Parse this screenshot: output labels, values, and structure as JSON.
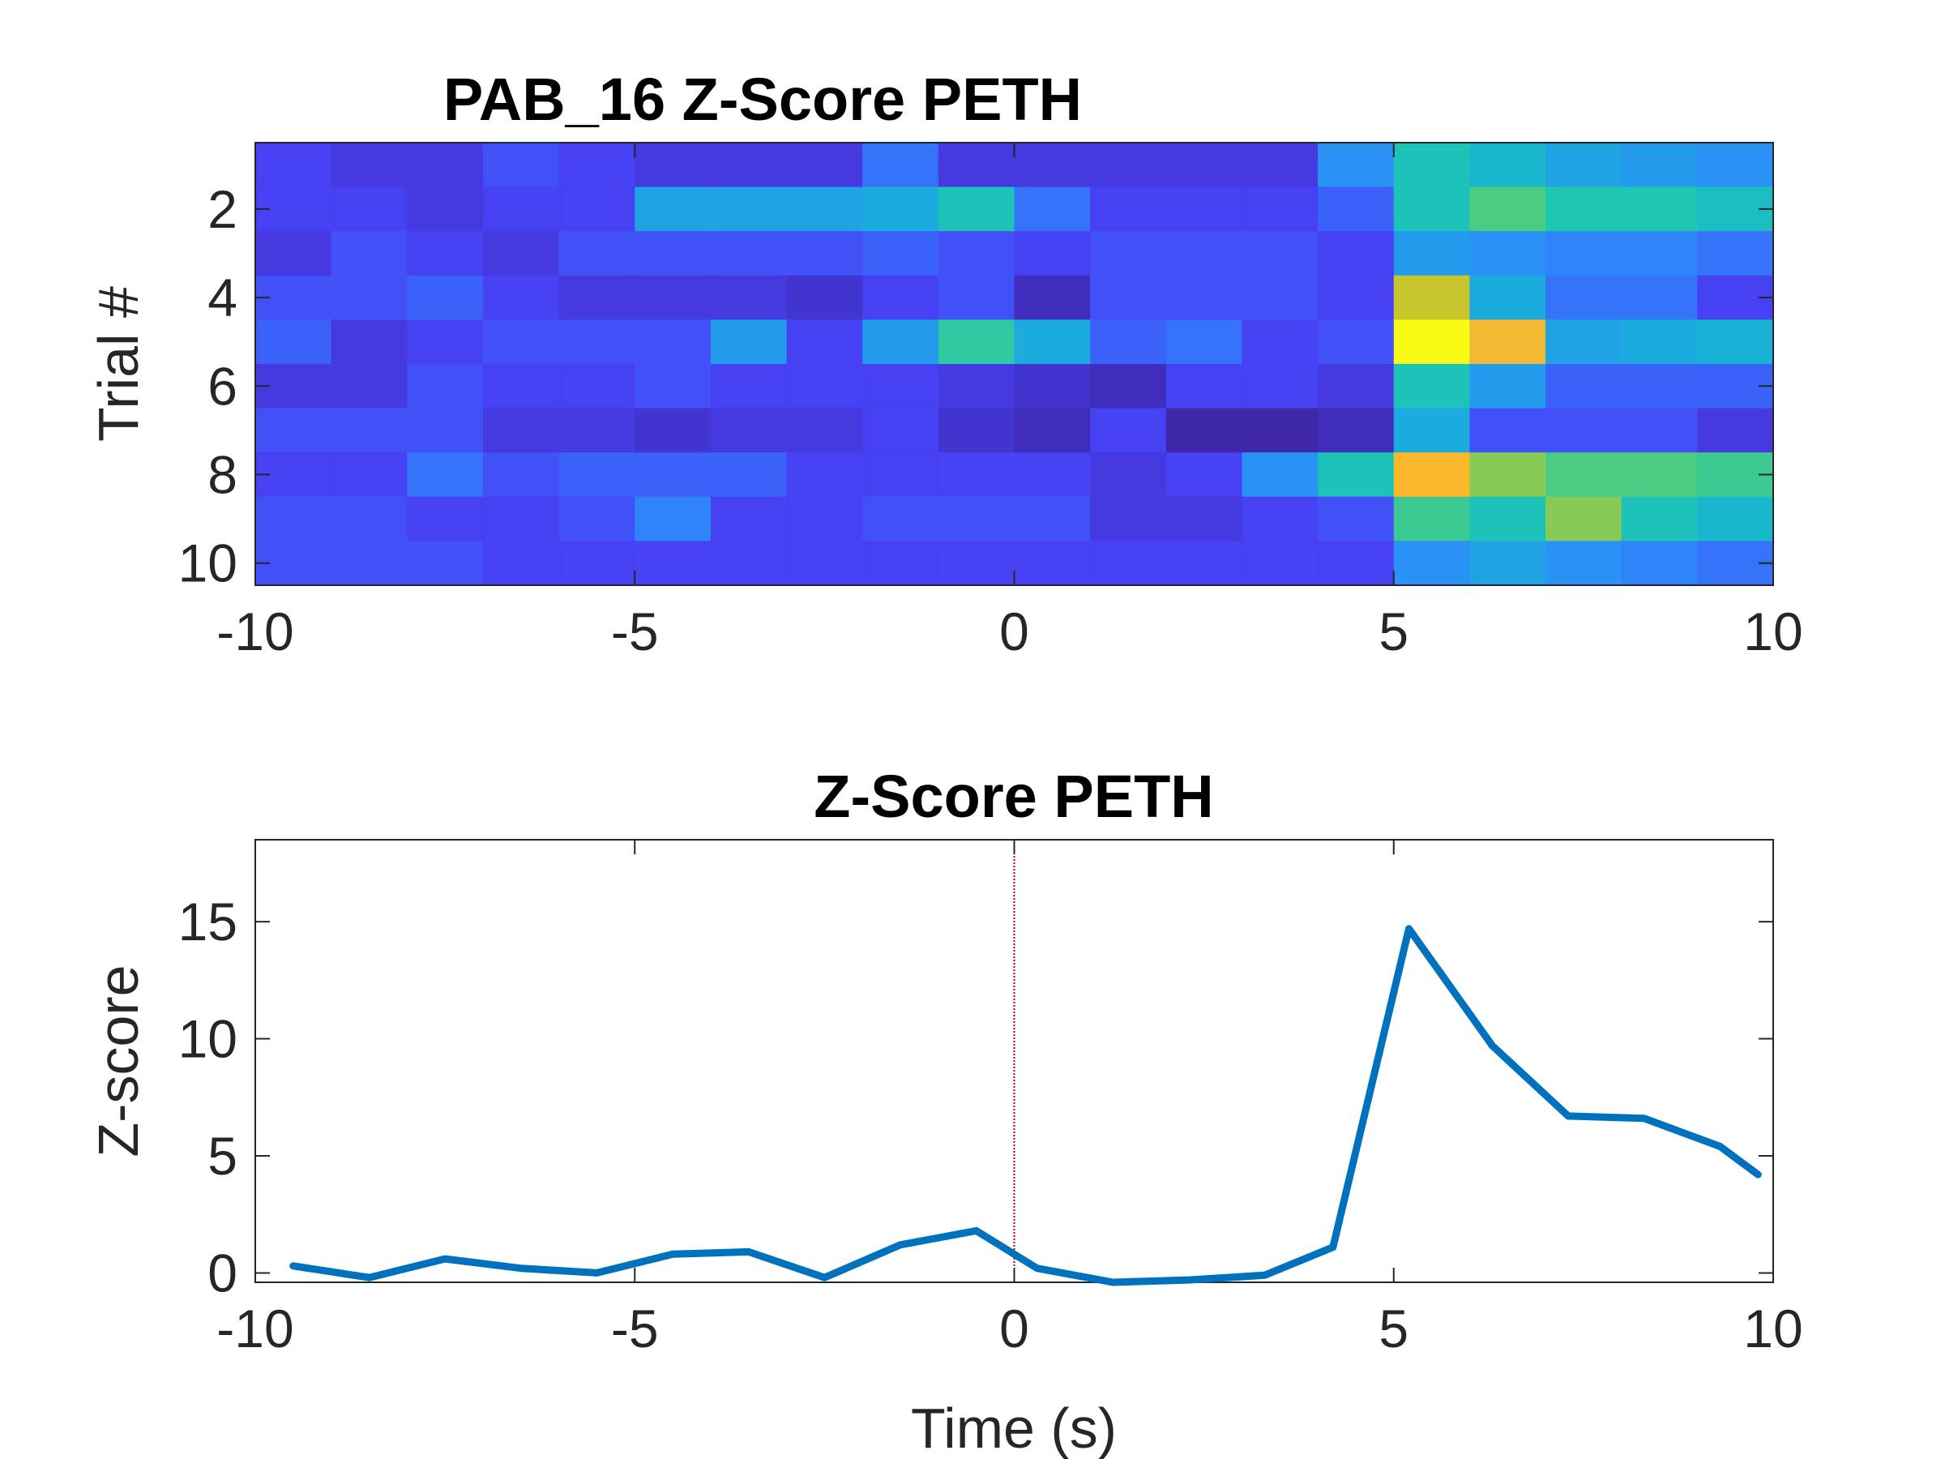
{
  "chart_data": [
    {
      "type": "heatmap",
      "title": "PAB_16  Z-Score PETH",
      "xlabel": "",
      "ylabel": "Trial #",
      "xlim": [
        -10,
        10
      ],
      "x_ticks": [
        -10,
        -5,
        0,
        5,
        10
      ],
      "y_ticks": [
        2,
        4,
        6,
        8,
        10
      ],
      "bin_centers": [
        -9.5,
        -8.5,
        -7.5,
        -6.5,
        -5.5,
        -4.5,
        -3.5,
        -2.5,
        -1.5,
        -0.5,
        0.5,
        1.5,
        2.5,
        3.5,
        4.5,
        5.5,
        6.5,
        7.5,
        8.5,
        9.5
      ],
      "trials": [
        1,
        2,
        3,
        4,
        5,
        6,
        7,
        8,
        9,
        10
      ],
      "color_range": [
        -4,
        30
      ],
      "colormap": [
        "#3e26a8",
        "#4743f8",
        "#2b8ef8",
        "#17b1d8",
        "#1fc7b0",
        "#5fcc70",
        "#c1c72e",
        "#fdb52f",
        "#f9fb15"
      ],
      "values": [
        [
          0,
          -1,
          -1,
          1,
          0,
          -1,
          -1,
          -1,
          3,
          -1,
          -1,
          -1,
          -1,
          -1,
          5,
          12,
          10,
          7,
          6,
          5
        ],
        [
          0,
          0,
          -1,
          0,
          0,
          7,
          7,
          7,
          8,
          12,
          3,
          0,
          0,
          0,
          2,
          12,
          16,
          13,
          13,
          11
        ],
        [
          -1,
          1,
          0,
          -1,
          1,
          1,
          1,
          1,
          2,
          1,
          0,
          1,
          1,
          1,
          0,
          6,
          5,
          4,
          4,
          3
        ],
        [
          1,
          1,
          2,
          0,
          -1,
          -1,
          -1,
          -2,
          0,
          1,
          -3,
          1,
          1,
          1,
          0,
          22,
          8,
          3,
          3,
          0
        ],
        [
          2,
          -1,
          0,
          1,
          1,
          1,
          6,
          0,
          6,
          14,
          8,
          2,
          3,
          0,
          1,
          30,
          25,
          7,
          8,
          9
        ],
        [
          -1,
          -1,
          1,
          0,
          0,
          1,
          0,
          0,
          0,
          -1,
          -2,
          -3,
          0,
          0,
          -1,
          12,
          6,
          2,
          2,
          2
        ],
        [
          1,
          1,
          1,
          -1,
          -1,
          -2,
          -1,
          -1,
          0,
          -2,
          -3,
          0,
          -4,
          -5,
          -3,
          8,
          1,
          1,
          1,
          -1
        ],
        [
          0,
          0,
          3,
          1,
          2,
          2,
          2,
          0,
          0,
          0,
          0,
          -1,
          0,
          5,
          12,
          26,
          19,
          16,
          16,
          15
        ],
        [
          1,
          1,
          0,
          0,
          1,
          4,
          0,
          0,
          1,
          1,
          1,
          -1,
          -1,
          0,
          1,
          15,
          12,
          19,
          12,
          10
        ],
        [
          1,
          1,
          1,
          0,
          0,
          0,
          0,
          0,
          0,
          0,
          0,
          0,
          0,
          0,
          0,
          5,
          7,
          5,
          4,
          3
        ]
      ]
    },
    {
      "type": "line",
      "title": "Z-Score PETH",
      "xlabel": "Time (s)",
      "ylabel": "Z-score",
      "xlim": [
        -10,
        10
      ],
      "ylim": [
        -0.4,
        18.5
      ],
      "x_ticks": [
        -10,
        -5,
        0,
        5,
        10
      ],
      "y_ticks": [
        0,
        5,
        10,
        15
      ],
      "event_line_x": 0,
      "event_line_color": "#c00000",
      "series_color": "#0072bd",
      "x": [
        -9.5,
        -8.5,
        -7.5,
        -6.5,
        -5.5,
        -4.5,
        -3.5,
        -2.5,
        -1.5,
        -0.5,
        0.3,
        1.3,
        2.3,
        3.3,
        4.2,
        5.2,
        6.3,
        7.3,
        8.3,
        9.3,
        9.8
      ],
      "y": [
        0.3,
        -0.2,
        0.6,
        0.2,
        0.0,
        0.8,
        0.9,
        -0.2,
        1.2,
        1.8,
        0.2,
        -0.4,
        -0.3,
        -0.1,
        1.1,
        14.7,
        9.7,
        6.7,
        6.6,
        5.4,
        4.2
      ]
    }
  ]
}
